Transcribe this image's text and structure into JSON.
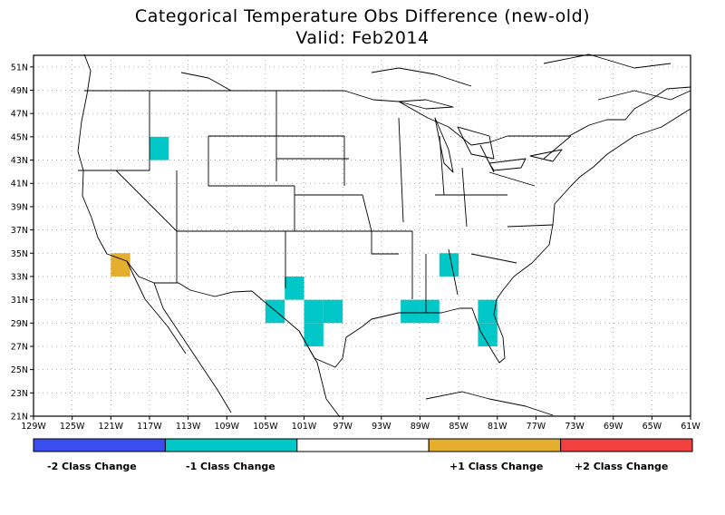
{
  "title": {
    "line1": "Categorical Temperature Obs Difference (new-old)",
    "line2": "Valid: Feb2014"
  },
  "map": {
    "lon_range": [
      -129,
      -61
    ],
    "lat_range": [
      21,
      52
    ],
    "lon_ticks": [
      -129,
      -125,
      -121,
      -117,
      -113,
      -109,
      -105,
      -101,
      -97,
      -93,
      -89,
      -85,
      -81,
      -77,
      -73,
      -69,
      -65,
      -61
    ],
    "lat_ticks": [
      21,
      23,
      25,
      27,
      29,
      31,
      33,
      35,
      37,
      39,
      41,
      43,
      45,
      47,
      49,
      51
    ],
    "lon_labels": [
      "129W",
      "125W",
      "121W",
      "117W",
      "113W",
      "109W",
      "105W",
      "101W",
      "97W",
      "93W",
      "89W",
      "85W",
      "81W",
      "77W",
      "73W",
      "69W",
      "65W",
      "61W"
    ],
    "lat_labels": [
      "21N",
      "23N",
      "25N",
      "27N",
      "29N",
      "31N",
      "33N",
      "35N",
      "37N",
      "39N",
      "41N",
      "43N",
      "45N",
      "47N",
      "49N",
      "51N"
    ],
    "grid": "dotted"
  },
  "colors": {
    "minus2": "#3a4ef0",
    "minus1": "#00c8c8",
    "zero": "#ffffff",
    "plus1": "#e6ae2e",
    "plus2": "#f04040"
  },
  "cells": [
    {
      "lon": -116,
      "lat": 44,
      "cls": -1
    },
    {
      "lon": -120,
      "lat": 34,
      "cls": 1
    },
    {
      "lon": -102,
      "lat": 32,
      "cls": -1
    },
    {
      "lon": -104,
      "lat": 30,
      "cls": -1
    },
    {
      "lon": -100,
      "lat": 30,
      "cls": -1
    },
    {
      "lon": -98,
      "lat": 30,
      "cls": -1
    },
    {
      "lon": -100,
      "lat": 28,
      "cls": -1
    },
    {
      "lon": -90,
      "lat": 30,
      "cls": -1
    },
    {
      "lon": -88,
      "lat": 30,
      "cls": -1
    },
    {
      "lon": -86,
      "lat": 34,
      "cls": -1
    },
    {
      "lon": -82,
      "lat": 30,
      "cls": -1
    },
    {
      "lon": -82,
      "lat": 28,
      "cls": -1
    }
  ],
  "legend": {
    "labels": {
      "minus2": "-2 Class Change",
      "minus1": "-1 Class Change",
      "plus1": "+1 Class Change",
      "plus2": "+2 Class Change"
    }
  }
}
